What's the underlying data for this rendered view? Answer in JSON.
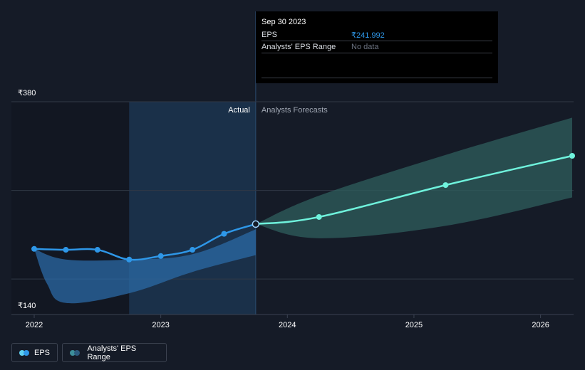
{
  "colors": {
    "background": "#151b27",
    "actual_line": "#2e97e8",
    "forecast_line": "#6ff2dc",
    "actual_band": "#2b6aa6",
    "forecast_band": "#2f5f5d",
    "gridline": "#313846",
    "highlight_region": "#1b3450",
    "past_region": "#121722"
  },
  "tooltip": {
    "date": "Sep 30 2023",
    "eps_label": "EPS",
    "eps_value": "₹241.992",
    "range_label": "Analysts' EPS Range",
    "range_value": "No data"
  },
  "region_labels": {
    "actual": "Actual",
    "forecast": "Analysts Forecasts"
  },
  "legend": {
    "eps_label": "EPS",
    "range_label": "Analysts' EPS Range"
  },
  "chart_data": {
    "type": "line",
    "title": "",
    "xlabel": "",
    "ylabel": "",
    "currency": "₹",
    "y_ticks": [
      {
        "value": 380,
        "label": "₹380"
      },
      {
        "value": 140,
        "label": "₹140"
      }
    ],
    "ylim": [
      140,
      380
    ],
    "xlim": [
      2022.0,
      2026.25
    ],
    "x_ticks": [
      {
        "value": 2022,
        "label": "2022"
      },
      {
        "value": 2023,
        "label": "2023"
      },
      {
        "value": 2024,
        "label": "2024"
      },
      {
        "value": 2025,
        "label": "2025"
      },
      {
        "value": 2026,
        "label": "2026"
      }
    ],
    "gridlines_y": [
      380,
      280,
      180
    ],
    "actual_start": 2022.75,
    "actual_end": 2023.75,
    "series": [
      {
        "name": "EPS",
        "kind": "actual",
        "points": [
          {
            "x": 2022.0,
            "y": 214
          },
          {
            "x": 2022.25,
            "y": 213
          },
          {
            "x": 2022.5,
            "y": 213
          },
          {
            "x": 2022.75,
            "y": 202
          },
          {
            "x": 2023.0,
            "y": 206
          },
          {
            "x": 2023.25,
            "y": 213
          },
          {
            "x": 2023.5,
            "y": 231
          },
          {
            "x": 2023.75,
            "y": 242
          }
        ]
      },
      {
        "name": "EPS",
        "kind": "forecast",
        "points": [
          {
            "x": 2023.75,
            "y": 242
          },
          {
            "x": 2024.25,
            "y": 250
          },
          {
            "x": 2025.25,
            "y": 286
          },
          {
            "x": 2026.25,
            "y": 319
          }
        ]
      }
    ],
    "ranges": [
      {
        "name": "Analysts' EPS Range",
        "kind": "actual",
        "upper": [
          {
            "x": 2022.0,
            "y": 214
          },
          {
            "x": 2022.25,
            "y": 202
          },
          {
            "x": 2022.75,
            "y": 202
          },
          {
            "x": 2023.25,
            "y": 208
          },
          {
            "x": 2023.75,
            "y": 236
          }
        ],
        "lower": [
          {
            "x": 2022.0,
            "y": 214
          },
          {
            "x": 2022.1,
            "y": 175
          },
          {
            "x": 2022.25,
            "y": 153
          },
          {
            "x": 2022.75,
            "y": 164
          },
          {
            "x": 2023.25,
            "y": 188
          },
          {
            "x": 2023.75,
            "y": 207
          }
        ]
      },
      {
        "name": "Analysts' EPS Range",
        "kind": "forecast",
        "upper": [
          {
            "x": 2023.75,
            "y": 242
          },
          {
            "x": 2024.25,
            "y": 274
          },
          {
            "x": 2025.25,
            "y": 320
          },
          {
            "x": 2026.25,
            "y": 362
          }
        ],
        "lower": [
          {
            "x": 2023.75,
            "y": 242
          },
          {
            "x": 2024.25,
            "y": 226
          },
          {
            "x": 2025.25,
            "y": 240
          },
          {
            "x": 2026.25,
            "y": 272
          }
        ]
      }
    ],
    "highlight_point": {
      "x": 2023.75,
      "y": 242
    }
  }
}
